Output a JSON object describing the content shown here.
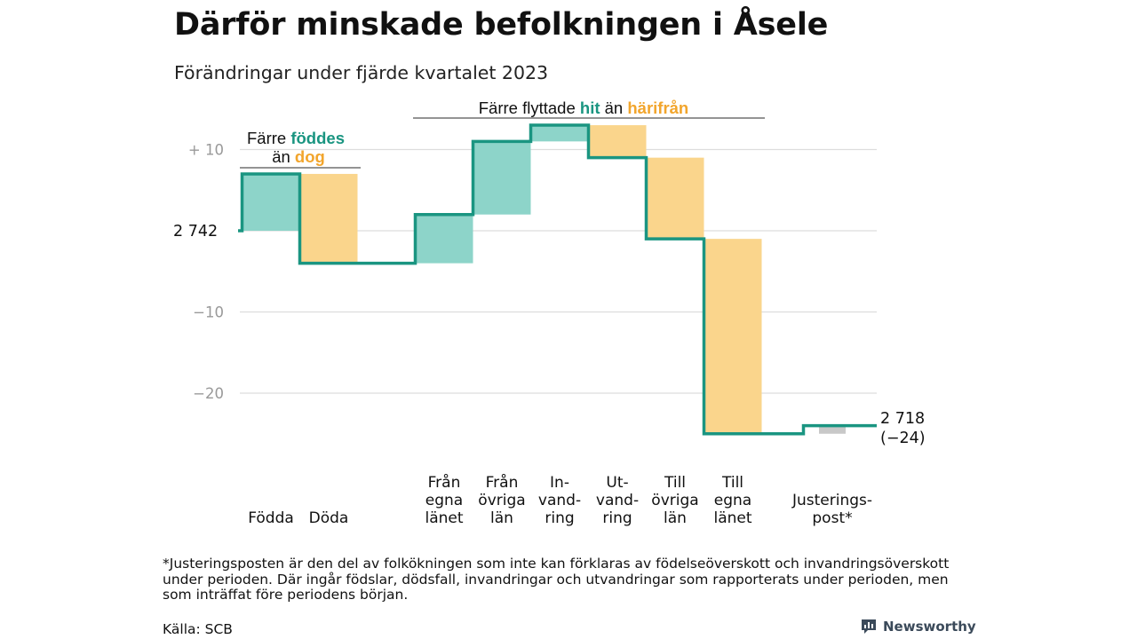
{
  "title": "Därför minskade befolkningen i Åsele",
  "subtitle": "Förändringar under fjärde kvartalet 2023",
  "footnote": "*Justeringsposten är den del av folkökningen som inte kan förklaras av födelseöverskott och invandringsöverskott under perioden. Där ingår födslar, dödsfall, invandringar och utvandringar som rapporterats under perioden, men som inträffat före periodens början.",
  "source": "Källa: SCB",
  "brand": "Newsworthy",
  "colors": {
    "increase": "#8dd4c9",
    "decrease": "#fad58c",
    "adjustment": "#c8c8c8",
    "line": "#1a9581",
    "teal_text": "#1a9581",
    "orange_text": "#f2a52c",
    "grid": "#dddddd",
    "axis_text": "#999999"
  },
  "chart_data": {
    "type": "waterfall",
    "start_value": 2742,
    "start_label": "2  742",
    "end_value_label": "2 718",
    "end_change_label": "(−24)",
    "y_ticks": [
      {
        "value": 10,
        "label": "+  10"
      },
      {
        "value": 0,
        "label": ""
      },
      {
        "value": -10,
        "label": "−10"
      },
      {
        "value": -20,
        "label": "−20"
      }
    ],
    "ylim": [
      -26,
      13
    ],
    "categories": [
      {
        "label": "Födda",
        "change": 7,
        "kind": "increase",
        "group": 0
      },
      {
        "label": "Döda",
        "change": -11,
        "kind": "decrease",
        "group": 0
      },
      {
        "label": "Från egna länet",
        "change": 6,
        "kind": "increase",
        "group": 1
      },
      {
        "label": "Från övriga län",
        "change": 9,
        "kind": "increase",
        "group": 1
      },
      {
        "label": "In-vand-ring",
        "change": 2,
        "kind": "increase",
        "group": 1
      },
      {
        "label": "Ut-vand-ring",
        "change": -4,
        "kind": "decrease",
        "group": 1
      },
      {
        "label": "Till övriga län",
        "change": -10,
        "kind": "decrease",
        "group": 1
      },
      {
        "label": "Till egna länet",
        "change": -24,
        "kind": "decrease",
        "group": 1
      },
      {
        "label": "Justerings-post*",
        "change": 1,
        "kind": "adjustment",
        "group": 2
      }
    ],
    "x_label_lines": [
      [
        "Födda"
      ],
      [
        "Döda"
      ],
      [
        "Från",
        "egna",
        "länet"
      ],
      [
        "Från",
        "övriga",
        "län"
      ],
      [
        "In-",
        "vand-",
        "ring"
      ],
      [
        "Ut-",
        "vand-",
        "ring"
      ],
      [
        "Till",
        "övriga",
        "län"
      ],
      [
        "Till",
        "egna",
        "länet"
      ],
      [
        "Justerings-",
        "post*"
      ]
    ],
    "annotations": [
      {
        "id": "births-vs-deaths",
        "parts": [
          "Färre ",
          "föddes"
        ],
        "parts2": [
          "än ",
          "dog"
        ]
      },
      {
        "id": "moves",
        "parts": [
          "Färre flyttade ",
          "hit",
          " än ",
          "härifrån"
        ]
      }
    ]
  }
}
